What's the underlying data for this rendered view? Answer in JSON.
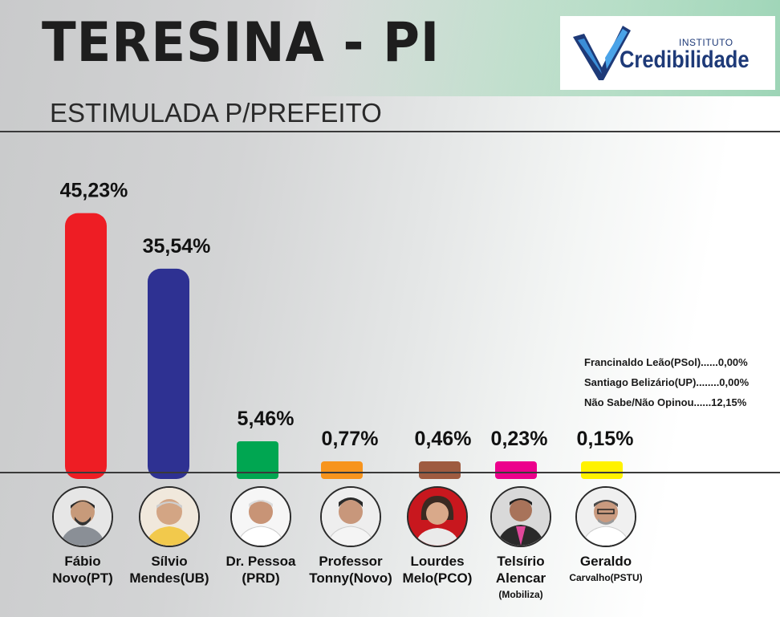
{
  "header": {
    "title": "TERESINA - PI",
    "subtitle": "ESTIMULADA P/PREFEITO"
  },
  "logo": {
    "small_text": "INSTITUTO",
    "word": "Credibilidade"
  },
  "chart_data": {
    "type": "bar",
    "title": "TERESINA - PI",
    "subtitle": "ESTIMULADA P/PREFEITO",
    "categories": [
      "Fábio Novo(PT)",
      "Sílvio Mendes(UB)",
      "Dr. Pessoa (PRD)",
      "Professor Tonny(Novo)",
      "Lourdes Melo(PCO)",
      "Telsírio Alencar (Mobiliza)",
      "Geraldo Carvalho(PSTU)"
    ],
    "values": [
      45.23,
      35.54,
      5.46,
      0.77,
      0.46,
      0.23,
      0.15
    ],
    "value_labels": [
      "45,23%",
      "35,54%",
      "5,46%",
      "0,77%",
      "0,46%",
      "0,23%",
      "0,15%"
    ],
    "colors": [
      "#ee1d24",
      "#2e3192",
      "#00a651",
      "#f7941d",
      "#9e5b40",
      "#ec008c",
      "#fff200"
    ],
    "ylim": [
      0,
      50
    ],
    "xlabel": "",
    "ylabel": "",
    "grid": false
  },
  "notes": [
    "Francinaldo Leão(PSol)......0,00%",
    "Santiago Belizário(UP)........0,00%",
    "Não Sabe/Não Opinou......12,15%"
  ],
  "candidates": [
    {
      "line1": "Fábio",
      "line2": "Novo(PT)",
      "line3": ""
    },
    {
      "line1": "Sílvio",
      "line2": "Mendes(UB)",
      "line3": ""
    },
    {
      "line1": "Dr. Pessoa",
      "line2": "(PRD)",
      "line3": ""
    },
    {
      "line1": "Professor",
      "line2": "Tonny(Novo)",
      "line3": ""
    },
    {
      "line1": "Lourdes",
      "line2": "Melo(PCO)",
      "line3": ""
    },
    {
      "line1": "Telsírio",
      "line2": "Alencar",
      "line3": "(Mobiliza)"
    },
    {
      "line1": "Geraldo",
      "line2": "Carvalho(PSTU)",
      "line3": ""
    }
  ]
}
